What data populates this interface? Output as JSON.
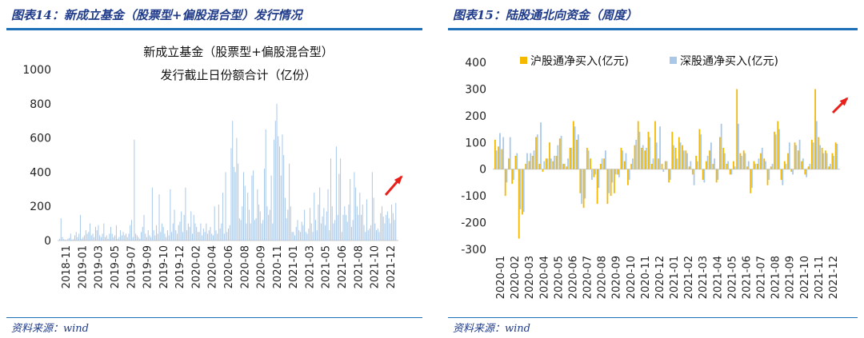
{
  "left": {
    "heading": "图表14：新成立基金（股票型+偏股混合型）发行情况",
    "source": "资料来源：wind",
    "chart_data": {
      "type": "bar",
      "title": "新成立基金（股票型+偏股混合型）",
      "subtitle": "发行截止日份额合计（亿份）",
      "ylim": [
        0,
        1000
      ],
      "yticks": [
        0,
        200,
        400,
        600,
        800,
        1000
      ],
      "x_tick_labels": [
        "2018-11",
        "2019-01",
        "2019-03",
        "2019-05",
        "2019-07",
        "2019-09",
        "2019-10",
        "2019-12",
        "2020-02",
        "2020-04",
        "2020-06",
        "2020-08",
        "2020-09",
        "2020-11",
        "2021-01",
        "2021-03",
        "2021-05",
        "2021-06",
        "2021-08",
        "2021-10",
        "2021-12"
      ],
      "color": "#a9c8e8",
      "values": [
        10,
        130,
        20,
        8,
        5,
        3,
        10,
        15,
        40,
        5,
        8,
        30,
        50,
        20,
        40,
        150,
        10,
        20,
        30,
        60,
        40,
        50,
        100,
        30,
        40,
        20,
        80,
        60,
        90,
        30,
        20,
        40,
        100,
        20,
        30,
        10,
        40,
        80,
        40,
        20,
        30,
        90,
        10,
        20,
        60,
        30,
        50,
        30,
        40,
        20,
        40,
        90,
        120,
        20,
        590,
        40,
        30,
        20,
        10,
        50,
        80,
        150,
        40,
        20,
        60,
        30,
        20,
        310,
        60,
        30,
        90,
        40,
        270,
        50,
        100,
        80,
        40,
        20,
        60,
        30,
        300,
        50,
        100,
        180,
        60,
        40,
        90,
        110,
        170,
        50,
        150,
        310,
        60,
        100,
        80,
        170,
        40,
        150,
        100,
        80,
        50,
        50,
        100,
        30,
        70,
        50,
        100,
        40,
        60,
        80,
        40,
        30,
        200,
        60,
        40,
        210,
        70,
        100,
        280,
        40,
        400,
        50,
        70,
        90,
        540,
        700,
        430,
        400,
        600,
        450,
        130,
        120,
        200,
        400,
        320,
        100,
        280,
        180,
        100,
        380,
        410,
        120,
        130,
        300,
        210,
        170,
        100,
        120,
        420,
        650,
        200,
        150,
        180,
        380,
        100,
        590,
        700,
        800,
        610,
        550,
        380,
        620,
        500,
        250,
        130,
        180,
        450,
        200,
        50,
        50,
        30,
        80,
        120,
        60,
        50,
        110,
        90,
        180,
        50,
        40,
        70,
        190,
        100,
        50,
        280,
        120,
        60,
        210,
        310,
        100,
        140,
        190,
        90,
        170,
        300,
        60,
        480,
        200,
        100,
        120,
        550,
        150,
        390,
        480,
        50,
        150,
        200,
        150,
        110,
        210,
        360,
        80,
        120,
        400,
        310,
        200,
        150,
        280,
        150,
        210,
        90,
        50,
        240,
        60,
        70,
        90,
        400,
        250,
        100,
        60,
        70,
        50,
        160,
        200,
        140,
        100,
        150,
        170,
        130,
        100,
        210,
        160,
        120,
        220
      ]
    }
  },
  "right": {
    "heading": "图表15：陆股通北向资金（周度）",
    "source": "资料来源：wind",
    "chart_data": {
      "type": "bar",
      "ylim": [
        -300,
        400
      ],
      "yticks": [
        -300,
        -200,
        -100,
        0,
        100,
        200,
        300,
        400
      ],
      "x_tick_labels": [
        "2020-01",
        "2020-02",
        "2020-03",
        "2020-04",
        "2020-05",
        "2020-06",
        "2020-07",
        "2020-08",
        "2020-09",
        "2020-10",
        "2020-11",
        "2020-12",
        "2021-01",
        "2021-02",
        "2021-03",
        "2021-04",
        "2021-05",
        "2021-06",
        "2021-07",
        "2021-08",
        "2021-09",
        "2021-10",
        "2021-11",
        "2021-12"
      ],
      "legend": [
        "沪股通净买入(亿元)",
        "深股通净买入(亿元)"
      ],
      "series": [
        {
          "name": "沪股通净买入(亿元)",
          "color": "#f5b800",
          "values": [
            110,
            85,
            75,
            -100,
            40,
            -55,
            50,
            -260,
            -170,
            20,
            30,
            50,
            120,
            20,
            -10,
            40,
            100,
            30,
            50,
            115,
            20,
            10,
            80,
            180,
            110,
            -90,
            -145,
            80,
            40,
            -30,
            -130,
            20,
            40,
            -130,
            -100,
            -90,
            -20,
            80,
            30,
            -60,
            20,
            90,
            180,
            80,
            70,
            140,
            20,
            180,
            40,
            20,
            30,
            -50,
            140,
            80,
            120,
            90,
            70,
            10,
            -20,
            50,
            150,
            -40,
            30,
            70,
            20,
            -50,
            120,
            80,
            20,
            -20,
            30,
            300,
            60,
            70,
            10,
            -90,
            30,
            20,
            60,
            40,
            -60,
            10,
            140,
            180,
            -40,
            30,
            60,
            -10,
            100,
            70,
            30,
            -20,
            10,
            110,
            300,
            120,
            80,
            70,
            10,
            60,
            100
          ]
        },
        {
          "name": "深股通净买入(亿元)",
          "color": "#a9c8e8",
          "values": [
            70,
            135,
            120,
            -50,
            120,
            -40,
            60,
            -150,
            -160,
            60,
            60,
            70,
            130,
            175,
            30,
            40,
            40,
            50,
            90,
            125,
            20,
            40,
            80,
            160,
            130,
            -130,
            -110,
            70,
            -40,
            -20,
            -70,
            40,
            70,
            -90,
            -50,
            -20,
            -30,
            70,
            60,
            -40,
            40,
            110,
            140,
            90,
            80,
            120,
            40,
            100,
            160,
            -10,
            30,
            -40,
            90,
            40,
            100,
            70,
            60,
            30,
            -60,
            30,
            130,
            -50,
            50,
            100,
            40,
            -40,
            170,
            60,
            30,
            -20,
            10,
            170,
            50,
            60,
            30,
            -70,
            20,
            40,
            80,
            30,
            -40,
            20,
            130,
            150,
            -60,
            20,
            100,
            -20,
            90,
            110,
            40,
            -30,
            20,
            100,
            180,
            90,
            60,
            60,
            20,
            50,
            95
          ]
        }
      ]
    }
  }
}
